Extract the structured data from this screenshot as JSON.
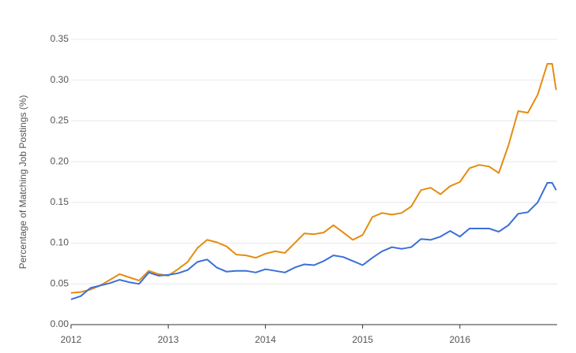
{
  "chart_data": {
    "type": "line",
    "y_label": "Percentage of Matching Job Postings (%)",
    "x": [
      2012.0,
      2012.1,
      2012.2,
      2012.3,
      2012.4,
      2012.5,
      2012.6,
      2012.7,
      2012.8,
      2012.9,
      2013.0,
      2013.1,
      2013.2,
      2013.3,
      2013.4,
      2013.5,
      2013.6,
      2013.7,
      2013.8,
      2013.9,
      2014.0,
      2014.1,
      2014.2,
      2014.3,
      2014.4,
      2014.5,
      2014.6,
      2014.7,
      2014.8,
      2014.9,
      2015.0,
      2015.1,
      2015.2,
      2015.3,
      2015.4,
      2015.5,
      2015.6,
      2015.7,
      2015.8,
      2015.9,
      2016.0,
      2016.1,
      2016.2,
      2016.3,
      2016.4,
      2016.5,
      2016.6,
      2016.7,
      2016.8,
      2016.9,
      2016.95,
      2016.99
    ],
    "series": [
      {
        "color": "#e58c0f",
        "values": [
          0.039,
          0.04,
          0.043,
          0.048,
          0.055,
          0.062,
          0.058,
          0.054,
          0.066,
          0.062,
          0.06,
          0.068,
          0.077,
          0.094,
          0.104,
          0.101,
          0.096,
          0.086,
          0.085,
          0.082,
          0.087,
          0.09,
          0.088,
          0.1,
          0.112,
          0.111,
          0.113,
          0.122,
          0.113,
          0.104,
          0.11,
          0.132,
          0.137,
          0.135,
          0.137,
          0.145,
          0.165,
          0.168,
          0.16,
          0.17,
          0.175,
          0.192,
          0.196,
          0.194,
          0.186,
          0.22,
          0.262,
          0.26,
          0.282,
          0.32,
          0.32,
          0.288
        ]
      },
      {
        "color": "#3b6fd9",
        "values": [
          0.031,
          0.035,
          0.045,
          0.048,
          0.051,
          0.055,
          0.052,
          0.05,
          0.064,
          0.06,
          0.061,
          0.063,
          0.067,
          0.077,
          0.08,
          0.07,
          0.065,
          0.066,
          0.066,
          0.064,
          0.068,
          0.066,
          0.064,
          0.07,
          0.074,
          0.073,
          0.078,
          0.085,
          0.083,
          0.078,
          0.073,
          0.082,
          0.09,
          0.095,
          0.093,
          0.095,
          0.105,
          0.104,
          0.108,
          0.115,
          0.108,
          0.118,
          0.118,
          0.118,
          0.114,
          0.122,
          0.136,
          0.138,
          0.15,
          0.174,
          0.174,
          0.165
        ]
      }
    ],
    "xlim": [
      2012,
      2017
    ],
    "xticks": [
      2012,
      2013,
      2014,
      2015,
      2016
    ],
    "ylim": [
      0,
      0.35
    ],
    "yticks": [
      {
        "value": 0,
        "label": "0.00"
      },
      {
        "value": 0.05,
        "label": "0.05"
      },
      {
        "value": 0.1,
        "label": "0.10"
      },
      {
        "value": 0.15,
        "label": "0.15"
      },
      {
        "value": 0.2,
        "label": "0.20"
      },
      {
        "value": 0.25,
        "label": "0.25"
      },
      {
        "value": 0.3,
        "label": "0.30"
      },
      {
        "value": 0.35,
        "label": "0.35"
      }
    ],
    "grid": true
  }
}
